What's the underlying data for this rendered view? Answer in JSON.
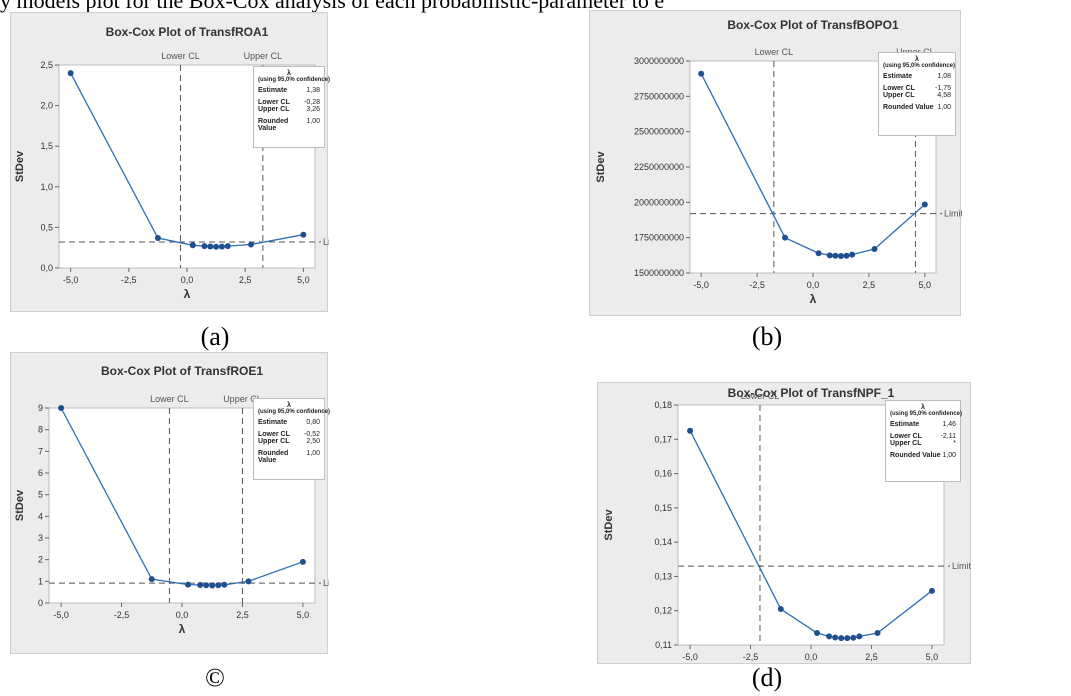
{
  "header_text": "y models plot for the Box-Cox analysis of each probabilistic-parameter to e",
  "chart_data": [
    {
      "type": "line",
      "panel_caption": "(a)",
      "title": "Box-Cox Plot of TransfROA1",
      "xlabel": "λ",
      "ylabel": "StDev",
      "xlim": [
        -5.5,
        5.5
      ],
      "ylim": [
        0,
        2.5
      ],
      "xticks": [
        "-5,0",
        "-2,5",
        "0,0",
        "2,5",
        "5,0"
      ],
      "yticks": [
        "0,0",
        "0,5",
        "1,0",
        "1,5",
        "2,0",
        "2,5"
      ],
      "x": [
        -5,
        -1.25,
        0.25,
        0.75,
        1.0,
        1.25,
        1.5,
        1.75,
        2.75,
        5
      ],
      "y": [
        2.4,
        0.37,
        0.28,
        0.27,
        0.265,
        0.262,
        0.263,
        0.27,
        0.29,
        0.41
      ],
      "limit": 0.32,
      "lower_cl": -0.28,
      "upper_cl": 3.26,
      "line_labels": {
        "lower": "Lower CL",
        "upper": "Upper CL",
        "limit": "Limit"
      },
      "legend": {
        "header": "λ",
        "subheader": "(using 95,0% confidence)",
        "rows": [
          {
            "label": "Estimate",
            "value": "1,38"
          },
          {
            "label": "Lower CL",
            "value": "-0,28"
          },
          {
            "label": "Upper CL",
            "value": "3,26"
          },
          {
            "label": "Rounded Value",
            "value": "1,00"
          }
        ]
      }
    },
    {
      "type": "line",
      "panel_caption": "(b)",
      "title": "Box-Cox Plot of TransfBOPO1",
      "xlabel": "λ",
      "ylabel": "StDev",
      "xlim": [
        -5.5,
        5.5
      ],
      "ylim": [
        1500000000,
        3000000000
      ],
      "xticks": [
        "-5,0",
        "-2,5",
        "0,0",
        "2,5",
        "5,0"
      ],
      "yticks": [
        "1500000000",
        "1750000000",
        "2000000000",
        "2250000000",
        "2500000000",
        "2750000000",
        "3000000000"
      ],
      "x": [
        -5,
        -1.25,
        0.25,
        0.75,
        1.0,
        1.25,
        1.5,
        1.75,
        2.75,
        5
      ],
      "y": [
        2910000000,
        1750000000,
        1640000000,
        1625000000,
        1622000000,
        1620000000,
        1622000000,
        1630000000,
        1670000000,
        1985000000
      ],
      "limit": 1920000000,
      "lower_cl": -1.75,
      "upper_cl": 4.58,
      "line_labels": {
        "lower": "Lower CL",
        "upper": "Upper CL",
        "limit": "Limit"
      },
      "legend": {
        "header": "λ",
        "subheader": "(using 95,0% confidence)",
        "rows": [
          {
            "label": "Estimate",
            "value": "1,08"
          },
          {
            "label": "Lower CL",
            "value": "-1,75"
          },
          {
            "label": "Upper CL",
            "value": "4,58"
          },
          {
            "label": "Rounded Value",
            "value": "1,00"
          }
        ]
      }
    },
    {
      "type": "line",
      "panel_caption": "©",
      "title": "Box-Cox Plot of TransfROE1",
      "xlabel": "λ",
      "ylabel": "StDev",
      "xlim": [
        -5.5,
        5.5
      ],
      "ylim": [
        0,
        9
      ],
      "xticks": [
        "-5,0",
        "-2,5",
        "0,0",
        "2,5",
        "5,0"
      ],
      "yticks": [
        "0",
        "1",
        "2",
        "3",
        "4",
        "5",
        "6",
        "7",
        "8",
        "9"
      ],
      "x": [
        -5,
        -1.25,
        0.25,
        0.75,
        1.0,
        1.25,
        1.5,
        1.75,
        2.75,
        5
      ],
      "y": [
        9.0,
        1.1,
        0.85,
        0.83,
        0.82,
        0.81,
        0.82,
        0.84,
        1.0,
        1.9
      ],
      "limit": 0.92,
      "lower_cl": -0.52,
      "upper_cl": 2.5,
      "line_labels": {
        "lower": "Lower CL",
        "upper": "Upper CL",
        "limit": "Limit"
      },
      "legend": {
        "header": "λ",
        "subheader": "(using 95,0% confidence)",
        "rows": [
          {
            "label": "Estimate",
            "value": "0,80"
          },
          {
            "label": "Lower CL",
            "value": "-0,52"
          },
          {
            "label": "Upper CL",
            "value": "2,50"
          },
          {
            "label": "Rounded Value",
            "value": "1,00"
          }
        ]
      }
    },
    {
      "type": "line",
      "panel_caption": "(d)",
      "title": "Box-Cox Plot of TransfNPF_1",
      "xlabel": "λ",
      "ylabel": "StDev",
      "xlim": [
        -5.5,
        5.5
      ],
      "ylim": [
        0.11,
        0.18
      ],
      "xticks": [
        "-5,0",
        "-2,5",
        "0,0",
        "2,5",
        "5,0"
      ],
      "yticks": [
        "0,11",
        "0,12",
        "0,13",
        "0,14",
        "0,15",
        "0,16",
        "0,17",
        "0,18"
      ],
      "x": [
        -5,
        -1.25,
        0.25,
        0.75,
        1.0,
        1.25,
        1.5,
        1.75,
        2.0,
        2.75,
        5
      ],
      "y": [
        0.1725,
        0.1205,
        0.1135,
        0.1125,
        0.1122,
        0.112,
        0.112,
        0.1121,
        0.1125,
        0.1135,
        0.1258
      ],
      "limit": 0.133,
      "lower_cl": -2.11,
      "upper_cl": null,
      "line_labels": {
        "lower": "Lower CL",
        "upper": "",
        "limit": "Limit"
      },
      "legend": {
        "header": "λ",
        "subheader": "(using 95,0% confidence)",
        "rows": [
          {
            "label": "Estimate",
            "value": "1,46"
          },
          {
            "label": "Lower CL",
            "value": "-2,11"
          },
          {
            "label": "Upper CL",
            "value": "*"
          },
          {
            "label": "Rounded Value",
            "value": "1,00"
          }
        ]
      }
    }
  ]
}
